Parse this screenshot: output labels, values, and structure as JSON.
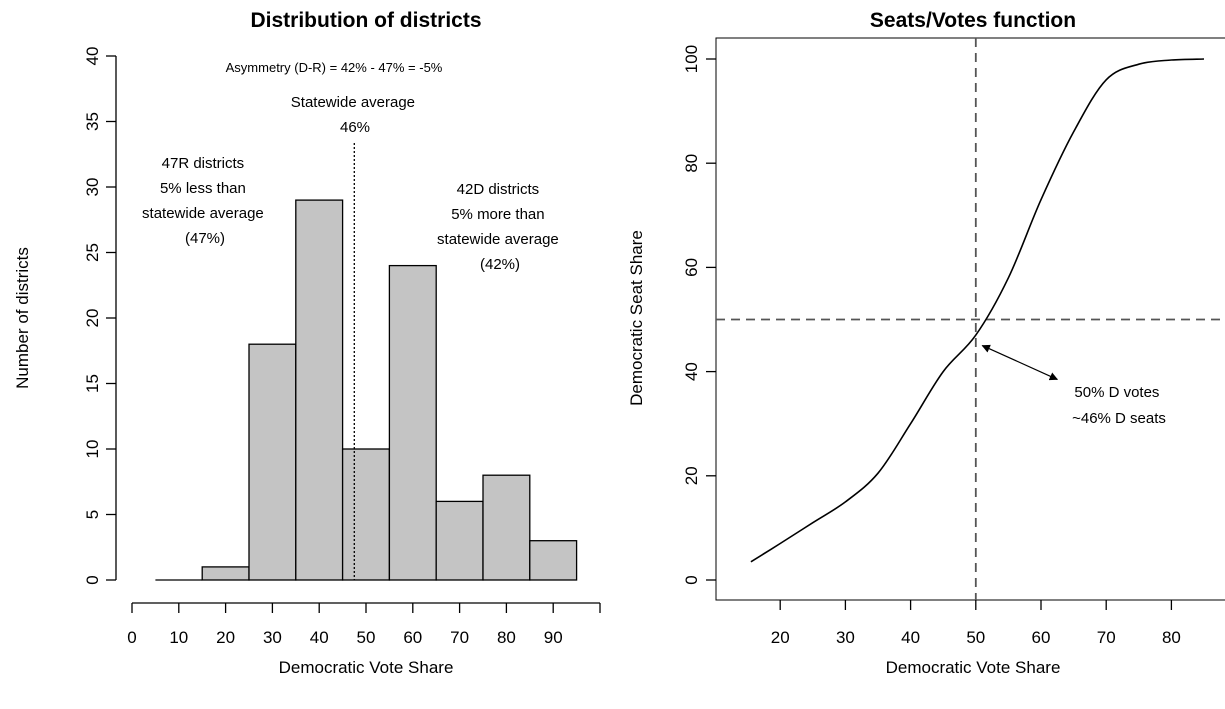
{
  "chart_data": [
    {
      "type": "bar",
      "title": "Distribution of districts",
      "xlabel": "Democratic Vote Share",
      "ylabel": "Number of districts",
      "xlim": [
        0,
        100
      ],
      "ylim": [
        0,
        40
      ],
      "x_ticks": [
        0,
        10,
        20,
        30,
        40,
        50,
        60,
        70,
        80,
        90
      ],
      "y_ticks": [
        0,
        5,
        10,
        15,
        20,
        25,
        30,
        35,
        40
      ],
      "bins": [
        {
          "from": 5,
          "to": 15,
          "value": 0
        },
        {
          "from": 15,
          "to": 25,
          "value": 1
        },
        {
          "from": 25,
          "to": 35,
          "value": 18
        },
        {
          "from": 35,
          "to": 45,
          "value": 29
        },
        {
          "from": 45,
          "to": 55,
          "value": 10
        },
        {
          "from": 55,
          "to": 65,
          "value": 24
        },
        {
          "from": 65,
          "to": 75,
          "value": 6
        },
        {
          "from": 75,
          "to": 85,
          "value": 8
        },
        {
          "from": 85,
          "to": 95,
          "value": 3
        }
      ],
      "bar_color": "#c4c4c4",
      "reference_line": {
        "x": 47.5,
        "style": "dotted"
      },
      "annotations": {
        "asymmetry": "Asymmetry (D-R) = 42% - 47% = -5%",
        "statewide": [
          "Statewide average",
          "46%"
        ],
        "r_districts": [
          "47R districts",
          "5% less than",
          "statewide average",
          "(47%)"
        ],
        "d_districts": [
          "42D districts",
          "5% more than",
          "statewide average",
          "(42%)"
        ]
      }
    },
    {
      "type": "line",
      "title": "Seats/Votes function",
      "xlabel": "Democratic Vote Share",
      "ylabel": "Democratic Seat Share",
      "xlim": [
        15,
        85
      ],
      "ylim": [
        0,
        100
      ],
      "x_ticks": [
        20,
        30,
        40,
        50,
        60,
        70,
        80
      ],
      "y_ticks": [
        0,
        20,
        40,
        60,
        80,
        100
      ],
      "series": [
        {
          "x": [
            15.5,
            20,
            25,
            30,
            35,
            40,
            45,
            50,
            55,
            60,
            65,
            70,
            75,
            80,
            85
          ],
          "y": [
            3.5,
            7,
            11,
            15,
            20.5,
            30,
            40,
            47,
            58,
            73,
            86,
            96,
            99,
            99.8,
            100
          ]
        }
      ],
      "reference_lines": {
        "vertical_x": 50,
        "horizontal_y": 50,
        "style": "dashed"
      },
      "annotation": {
        "lines": [
          "50% D votes",
          "~46% D seats"
        ],
        "arrow_to": [
          51,
          45
        ]
      }
    }
  ]
}
